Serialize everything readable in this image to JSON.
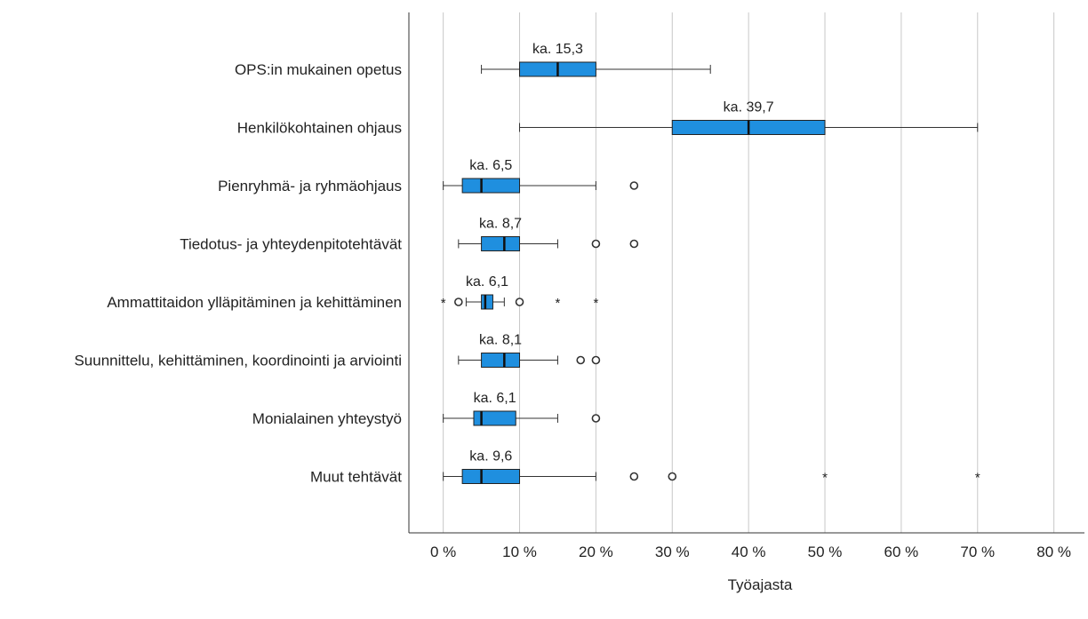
{
  "chart_data": {
    "type": "boxplot",
    "orientation": "horizontal",
    "title": "",
    "xlabel": "Työajasta",
    "ylabel": "",
    "xlim": [
      -4.5,
      84
    ],
    "xticks": [
      0,
      10,
      20,
      30,
      40,
      50,
      60,
      70,
      80
    ],
    "xtick_labels": [
      "0 %",
      "10 %",
      "20 %",
      "30 %",
      "40 %",
      "50 %",
      "60 %",
      "70 %",
      "80 %"
    ],
    "grid": "vertical",
    "box_color": "#1f8fdf",
    "categories": [
      {
        "label": "OPS:in mukainen opetus",
        "mean_label": "ka. 15,3",
        "whisker_low": 5,
        "q1": 10,
        "median": 15,
        "q3": 20,
        "whisker_high": 35,
        "outliers": [],
        "extremes": []
      },
      {
        "label": "Henkilökohtainen ohjaus",
        "mean_label": "ka. 39,7",
        "whisker_low": 10,
        "q1": 30,
        "median": 40,
        "q3": 50,
        "whisker_high": 70,
        "outliers": [],
        "extremes": []
      },
      {
        "label": "Pienryhmä- ja ryhmäohjaus",
        "mean_label": "ka. 6,5",
        "whisker_low": 0,
        "q1": 2.5,
        "median": 5,
        "q3": 10,
        "whisker_high": 20,
        "outliers": [
          25
        ],
        "extremes": []
      },
      {
        "label": "Tiedotus- ja yhteydenpitotehtävät",
        "mean_label": "ka. 8,7",
        "whisker_low": 2,
        "q1": 5,
        "median": 8,
        "q3": 10,
        "whisker_high": 15,
        "outliers": [
          20,
          25
        ],
        "extremes": []
      },
      {
        "label": "Ammattitaidon ylläpitäminen ja kehittäminen",
        "mean_label": "ka. 6,1",
        "whisker_low": 3,
        "q1": 5,
        "median": 5.5,
        "q3": 6.5,
        "whisker_high": 8,
        "outliers": [
          2,
          10
        ],
        "extremes": [
          0,
          15,
          20
        ]
      },
      {
        "label": "Suunnittelu, kehittäminen, koordinointi ja arviointi",
        "mean_label": "ka. 8,1",
        "whisker_low": 2,
        "q1": 5,
        "median": 8,
        "q3": 10,
        "whisker_high": 15,
        "outliers": [
          18,
          20
        ],
        "extremes": []
      },
      {
        "label": "Monialainen yhteystyö",
        "mean_label": "ka. 6,1",
        "whisker_low": 0,
        "q1": 4,
        "median": 5,
        "q3": 9.5,
        "whisker_high": 15,
        "outliers": [
          20
        ],
        "extremes": []
      },
      {
        "label": "Muut tehtävät",
        "mean_label": "ka. 9,6",
        "whisker_low": 0,
        "q1": 2.5,
        "median": 5,
        "q3": 10,
        "whisker_high": 20,
        "outliers": [
          25,
          30
        ],
        "extremes": [
          50,
          70
        ]
      }
    ]
  }
}
